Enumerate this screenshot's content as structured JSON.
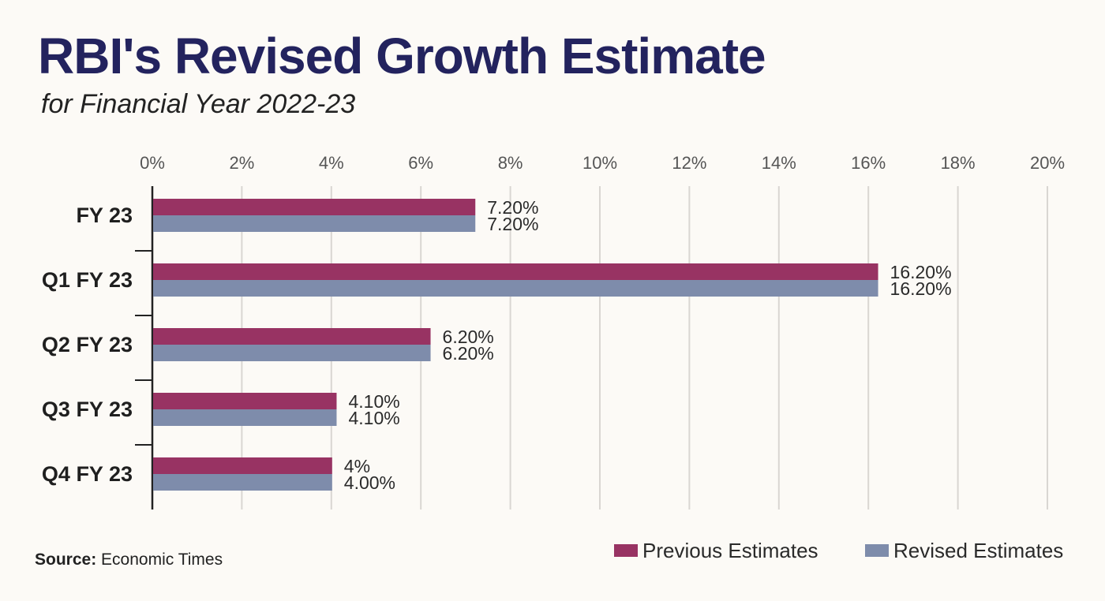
{
  "title": "RBI's Revised Growth Estimate",
  "subtitle": "for Financial Year 2022-23",
  "source": {
    "prefix": "Source:",
    "text": "Economic Times"
  },
  "colors": {
    "previous": "#983363",
    "revised": "#7e8cab",
    "grid": "#d9d6d2",
    "axis": "#222222",
    "tick_text": "#555555",
    "label_text": "#2a2a2a"
  },
  "legend": [
    {
      "label": "Previous Estimates",
      "color": "#983363"
    },
    {
      "label": "Revised Estimates",
      "color": "#7e8cab"
    }
  ],
  "chart_data": {
    "type": "bar",
    "orientation": "horizontal",
    "categories": [
      "FY 23",
      "Q1 FY 23",
      "Q2 FY 23",
      "Q3 FY 23",
      "Q4 FY 23"
    ],
    "series": [
      {
        "name": "Previous Estimates",
        "values": [
          7.2,
          16.2,
          6.2,
          4.1,
          4.0
        ],
        "labels": [
          "7.20%",
          "16.20%",
          "6.20%",
          "4.10%",
          "4%"
        ]
      },
      {
        "name": "Revised Estimates",
        "values": [
          7.2,
          16.2,
          6.2,
          4.1,
          4.0
        ],
        "labels": [
          "7.20%",
          "16.20%",
          "6.20%",
          "4.10%",
          "4.00%"
        ]
      }
    ],
    "xlim": [
      0,
      20
    ],
    "xticks": [
      0,
      2,
      4,
      6,
      8,
      10,
      12,
      14,
      16,
      18,
      20
    ],
    "xtick_labels": [
      "0%",
      "2%",
      "4%",
      "6%",
      "8%",
      "10%",
      "12%",
      "14%",
      "16%",
      "18%",
      "20%"
    ],
    "xaxis_position": "top",
    "grid": true,
    "legend_position": "bottom-right",
    "xlabel": "",
    "ylabel": ""
  }
}
